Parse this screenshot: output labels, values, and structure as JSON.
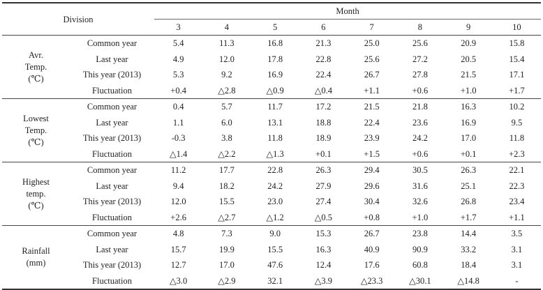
{
  "header": {
    "division": "Division",
    "month": "Month",
    "months": [
      "3",
      "4",
      "5",
      "6",
      "7",
      "8",
      "9",
      "10"
    ]
  },
  "groups": [
    {
      "label": [
        "Avr.",
        "Temp.",
        "(℃)"
      ],
      "rows": [
        {
          "name": "Common  year",
          "values": [
            "5.4",
            "11.3",
            "16.8",
            "21.3",
            "25.0",
            "25.6",
            "20.9",
            "15.8"
          ]
        },
        {
          "name": "Last  year",
          "values": [
            "4.9",
            "12.0",
            "17.8",
            "22.8",
            "25.6",
            "27.2",
            "20.5",
            "15.4"
          ]
        },
        {
          "name": "This  year  (2013)",
          "values": [
            "5.3",
            "9.2",
            "16.9",
            "22.4",
            "26.7",
            "27.8",
            "21.5",
            "17.1"
          ]
        },
        {
          "name": "Fluctuation",
          "values": [
            "+0.4",
            "△2.8",
            "△0.9",
            "△0.4",
            "+1.1",
            "+0.6",
            "+1.0",
            "+1.7"
          ]
        }
      ]
    },
    {
      "label": [
        "Lowest",
        "Temp.",
        "(℃)"
      ],
      "rows": [
        {
          "name": "Common  year",
          "values": [
            "0.4",
            "5.7",
            "11.7",
            "17.2",
            "21.5",
            "21.8",
            "16.3",
            "10.2"
          ]
        },
        {
          "name": "Last  year",
          "values": [
            "1.1",
            "6.0",
            "13.1",
            "18.8",
            "22.4",
            "23.6",
            "16.9",
            "9.5"
          ]
        },
        {
          "name": "This  year  (2013)",
          "values": [
            "-0.3",
            "3.8",
            "11.8",
            "18.9",
            "23.9",
            "24.2",
            "17.0",
            "11.8"
          ]
        },
        {
          "name": "Fluctuation",
          "values": [
            "△1.4",
            "△2.2",
            "△1.3",
            "+0.1",
            "+1.5",
            "+0.6",
            "+0.1",
            "+2.3"
          ]
        }
      ]
    },
    {
      "label": [
        "Highest",
        "temp.",
        "(℃)"
      ],
      "rows": [
        {
          "name": "Common  year",
          "values": [
            "11.2",
            "17.7",
            "22.8",
            "26.3",
            "29.4",
            "30.5",
            "26.3",
            "22.1"
          ]
        },
        {
          "name": "Last  year",
          "values": [
            "9.4",
            "18.2",
            "24.2",
            "27.9",
            "29.6",
            "31.6",
            "25.1",
            "22.3"
          ]
        },
        {
          "name": "This  year  (2013)",
          "values": [
            "12.0",
            "15.5",
            "23.0",
            "27.4",
            "30.4",
            "32.6",
            "26.8",
            "23.4"
          ]
        },
        {
          "name": "Fluctuation",
          "values": [
            "+2.6",
            "△2.7",
            "△1.2",
            "△0.5",
            "+0.8",
            "+1.0",
            "+1.7",
            "+1.1"
          ]
        }
      ]
    },
    {
      "label": [
        "Rainfall",
        "(mm)"
      ],
      "rows": [
        {
          "name": "Common  year",
          "values": [
            "4.8",
            "7.3",
            "9.0",
            "15.3",
            "26.7",
            "23.8",
            "14.4",
            "3.5"
          ]
        },
        {
          "name": "Last  year",
          "values": [
            "15.7",
            "19.9",
            "15.5",
            "16.3",
            "40.9",
            "90.9",
            "33.2",
            "3.1"
          ]
        },
        {
          "name": "This  year  (2013)",
          "values": [
            "12.7",
            "17.0",
            "47.6",
            "12.4",
            "17.6",
            "60.8",
            "18.4",
            "3.1"
          ]
        },
        {
          "name": "Fluctuation",
          "values": [
            "△3.0",
            "△2.9",
            "32.1",
            "△3.9",
            "△23.3",
            "△30.1",
            "△14.8",
            "-"
          ]
        }
      ]
    }
  ]
}
